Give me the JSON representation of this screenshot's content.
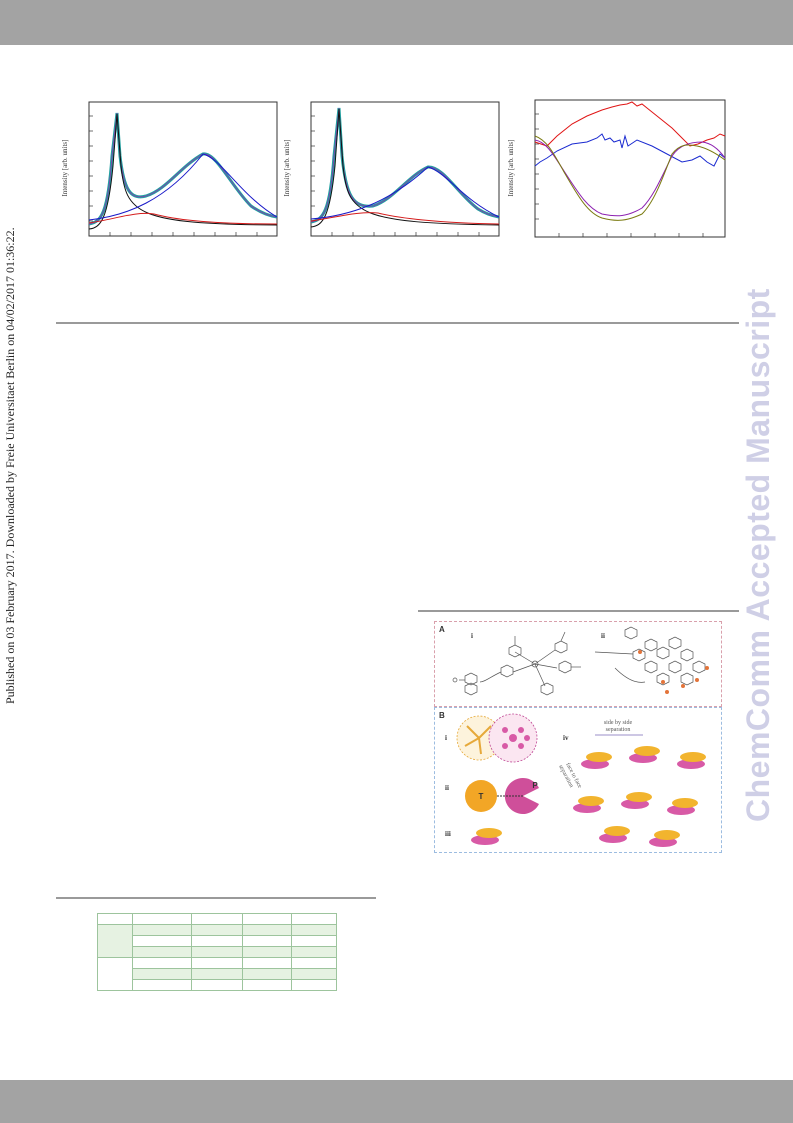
{
  "side_note": "Published on 03 February 2017. Downloaded by Freie Universitaet Berlin on 04/02/2017 01:36:22.",
  "watermark": "ChemComm Accepted Manuscript",
  "charts": [
    {
      "ylabel": "Intensity [arb. units]"
    },
    {
      "ylabel": "Intensity [arb. units]"
    },
    {
      "ylabel": "Intensity [arb. units]"
    }
  ],
  "scheme": {
    "panel_a_label": "A",
    "panel_b_label": "B",
    "roman": {
      "a1": "i",
      "a2": "ii",
      "b1": "i",
      "b2": "ii",
      "b3": "iii",
      "b4": "iv"
    },
    "T": "T",
    "P": "P",
    "side_by_side": "side by side",
    "separation": "separation",
    "face_to_face": "face to face",
    "separation2": "separation"
  },
  "colors": {
    "bars": "#a3a3a3",
    "watermark": "#cfcfe6"
  }
}
